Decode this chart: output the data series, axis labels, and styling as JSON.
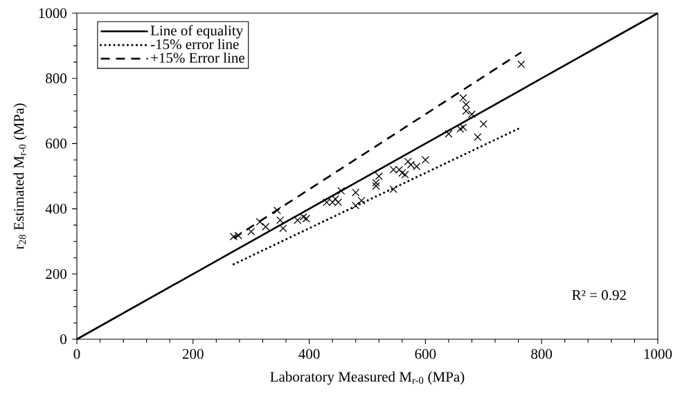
{
  "chart_data": {
    "type": "scatter",
    "xlabel": "Laboratory Measured M$_{r-0}$ (MPa)",
    "ylabel": "r$_{28}$ Estimated M$_{r-0}$ (MPa)",
    "xlim": [
      0,
      1000
    ],
    "ylim": [
      0,
      1000
    ],
    "xticks": [
      0,
      200,
      400,
      600,
      800,
      1000
    ],
    "yticks": [
      0,
      200,
      400,
      600,
      800,
      1000
    ],
    "legend": "top left",
    "annotations": [
      "R² = 0.92"
    ],
    "series": [
      {
        "type": "line",
        "name": "Line of equality",
        "color": "#000000",
        "line_style": "solid",
        "x": [
          0,
          1000
        ],
        "values": [
          0,
          1000
        ]
      },
      {
        "type": "line",
        "name": "-15% error line",
        "color": "#000000",
        "line_style": "dotted",
        "x": [
          270,
          765
        ],
        "values": [
          230,
          650
        ]
      },
      {
        "type": "line",
        "name": "+15% Error line",
        "color": "#000000",
        "line_style": "dashed",
        "x": [
          270,
          765
        ],
        "values": [
          310,
          880
        ]
      },
      {
        "color": "#000000",
        "marker": "cross",
        "x": [
          270,
          278,
          300,
          315,
          325,
          345,
          350,
          355,
          380,
          390,
          395,
          430,
          440,
          445,
          450,
          455,
          480,
          480,
          490,
          515,
          515,
          520,
          545,
          545,
          555,
          560,
          565,
          570,
          575,
          585,
          600,
          640,
          660,
          665,
          665,
          670,
          670,
          680,
          690,
          700,
          765
        ],
        "values": [
          315,
          318,
          330,
          360,
          345,
          395,
          365,
          340,
          365,
          375,
          370,
          420,
          420,
          430,
          420,
          455,
          450,
          410,
          425,
          470,
          480,
          500,
          460,
          520,
          520,
          510,
          505,
          545,
          535,
          530,
          550,
          630,
          645,
          650,
          740,
          720,
          700,
          690,
          620,
          660,
          843
        ]
      }
    ]
  }
}
